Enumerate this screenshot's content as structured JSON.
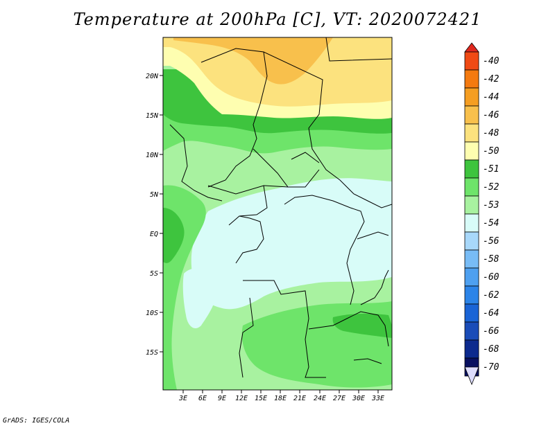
{
  "title": "Temperature at 200hPa [C], VT: 2020072421",
  "credit": "GrADS: IGES/COLA",
  "map": {
    "lat_labels": [
      "20N",
      "15N",
      "10N",
      "5N",
      "EQ",
      "5S",
      "10S",
      "15S"
    ],
    "lon_labels": [
      "3E",
      "6E",
      "9E",
      "12E",
      "15E",
      "18E",
      "21E",
      "24E",
      "27E",
      "30E",
      "33E"
    ]
  },
  "legend": {
    "labels": [
      "-40",
      "-42",
      "-44",
      "-46",
      "-48",
      "-50",
      "-51",
      "-52",
      "-53",
      "-54",
      "-56",
      "-58",
      "-60",
      "-62",
      "-64",
      "-66",
      "-68",
      "-70"
    ],
    "colors": [
      "#e0281e",
      "#f04a14",
      "#f47a10",
      "#f59e22",
      "#f8c04c",
      "#fce27e",
      "#fefeb0",
      "#3ec43e",
      "#6ee46a",
      "#a8f2a0",
      "#d8fcf8",
      "#a8d8fa",
      "#78bcf6",
      "#4ea0f0",
      "#2c84e8",
      "#1a64d6",
      "#1a4cb8",
      "#0c2a8e",
      "#081060",
      "#dcdcfc"
    ]
  }
}
